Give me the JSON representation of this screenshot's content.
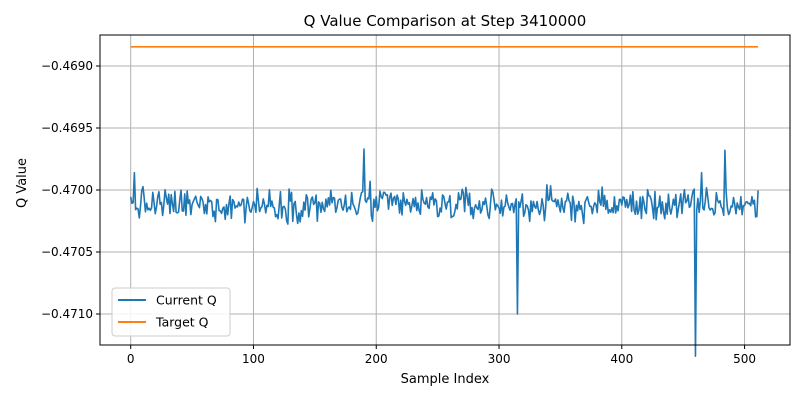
{
  "chart_data": {
    "type": "line",
    "title": "Q Value Comparison at Step 3410000",
    "xlabel": "Sample Index",
    "ylabel": "Q Value",
    "xlim": [
      -25,
      537
    ],
    "ylim": [
      -0.47125,
      -0.46875
    ],
    "x_ticks": [
      0,
      100,
      200,
      300,
      400,
      500
    ],
    "x_tick_labels": [
      "0",
      "100",
      "200",
      "300",
      "400",
      "500"
    ],
    "y_ticks": [
      -0.471,
      -0.4705,
      -0.47,
      -0.4695,
      -0.469
    ],
    "y_tick_labels": [
      "−0.4710",
      "−0.4705",
      "−0.4700",
      "−0.4695",
      "−0.4690"
    ],
    "grid": true,
    "legend_position": "lower-left",
    "series": [
      {
        "name": "Current Q",
        "color": "#1f77b4",
        "kind": "noisy",
        "x_start": 0,
        "x_end": 511,
        "baseline": -0.47012,
        "noise_amplitude": 0.00012,
        "spikes": [
          {
            "x": 3,
            "y": -0.46986
          },
          {
            "x": 190,
            "y": -0.46967
          },
          {
            "x": 195,
            "y": -0.46993
          },
          {
            "x": 315,
            "y": -0.471
          },
          {
            "x": 460,
            "y": -0.47134
          },
          {
            "x": 484,
            "y": -0.46968
          },
          {
            "x": 465,
            "y": -0.46986
          }
        ]
      },
      {
        "name": "Target Q",
        "color": "#ff7f0e",
        "kind": "constant",
        "x_start": 0,
        "x_end": 511,
        "value": -0.468845
      }
    ]
  }
}
